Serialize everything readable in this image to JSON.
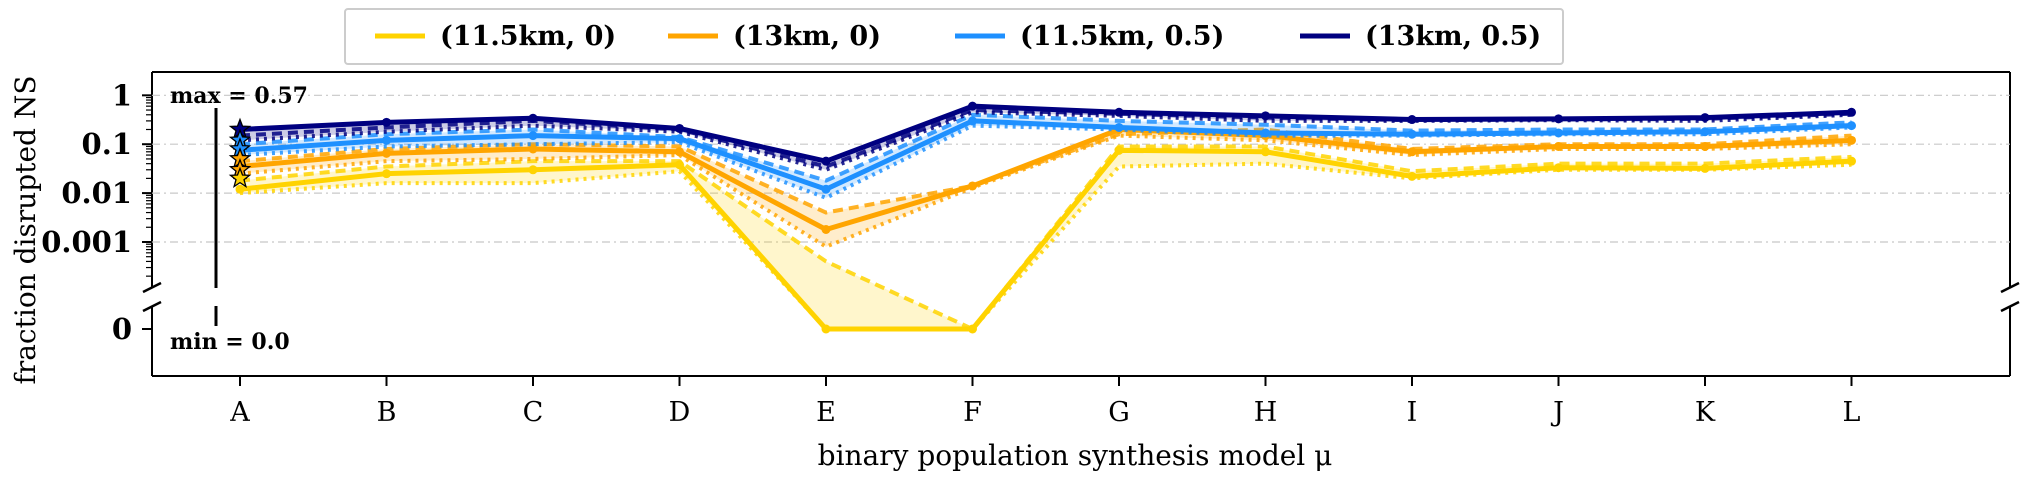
{
  "chart_data": {
    "type": "line",
    "ylabel": "fraction disrupted NS",
    "xlabel": "binary population synthesis model μ",
    "x_categories": [
      "A",
      "B",
      "C",
      "D",
      "E",
      "F",
      "G",
      "H",
      "I",
      "J",
      "K",
      "L"
    ],
    "y_scale": "log",
    "y_ticks": [
      "1",
      "0.1",
      "0.01",
      "0.001"
    ],
    "y_ticks_lower": [
      "0"
    ],
    "ylim_upper": [
      0.00012,
      3
    ],
    "annotations": {
      "max": "max = 0.57",
      "min": "min = 0.0"
    },
    "legend_position": "top, above plot",
    "grid": "dash-dot horizontal at major ticks",
    "series": [
      {
        "name": "(11.5km, 0)",
        "color": "#FFD300",
        "values": [
          0.012,
          0.025,
          0.03,
          0.038,
          0.0,
          0.0,
          0.075,
          0.07,
          0.022,
          0.033,
          0.032,
          0.045
        ],
        "variants": [
          [
            0.018,
            0.035,
            0.045,
            0.045,
            0.0004,
            0.0,
            0.09,
            0.09,
            0.028,
            0.04,
            0.04,
            0.055
          ],
          [
            0.01,
            0.016,
            0.016,
            0.028,
            0.0,
            0.0,
            0.035,
            0.04,
            0.02,
            0.03,
            0.03,
            0.038
          ]
        ]
      },
      {
        "name": "(13km, 0)",
        "color": "#FFA500",
        "values": [
          0.035,
          0.065,
          0.08,
          0.07,
          0.0018,
          0.014,
          0.2,
          0.15,
          0.07,
          0.09,
          0.09,
          0.12
        ],
        "variants": [
          [
            0.045,
            0.08,
            0.1,
            0.09,
            0.004,
            0.014,
            0.16,
            0.2,
            0.08,
            0.1,
            0.1,
            0.15
          ],
          [
            0.025,
            0.045,
            0.05,
            0.06,
            0.0008,
            0.013,
            0.15,
            0.12,
            0.06,
            0.08,
            0.08,
            0.1
          ]
        ]
      },
      {
        "name": "(11.5km, 0.5)",
        "color": "#1E90FF",
        "values": [
          0.075,
          0.12,
          0.15,
          0.13,
          0.012,
          0.3,
          0.22,
          0.17,
          0.16,
          0.17,
          0.18,
          0.24
        ],
        "variants": [
          [
            0.1,
            0.16,
            0.2,
            0.14,
            0.018,
            0.4,
            0.3,
            0.25,
            0.19,
            0.2,
            0.2,
            0.28
          ],
          [
            0.06,
            0.09,
            0.1,
            0.11,
            0.008,
            0.24,
            0.2,
            0.15,
            0.15,
            0.16,
            0.16,
            0.22
          ]
        ]
      },
      {
        "name": "(13km, 0.5)",
        "color": "#000080",
        "values": [
          0.2,
          0.28,
          0.34,
          0.21,
          0.045,
          0.6,
          0.45,
          0.38,
          0.32,
          0.33,
          0.35,
          0.45
        ],
        "variants": [
          [
            0.15,
            0.22,
            0.3,
            0.2,
            0.035,
            0.5,
            0.42,
            0.35,
            0.31,
            0.32,
            0.33,
            0.42
          ],
          [
            0.12,
            0.18,
            0.24,
            0.18,
            0.03,
            0.45,
            0.38,
            0.3,
            0.3,
            0.31,
            0.3,
            0.4
          ]
        ]
      }
    ],
    "stars": [
      0.2,
      0.12,
      0.08,
      0.05,
      0.03,
      0.02
    ]
  }
}
